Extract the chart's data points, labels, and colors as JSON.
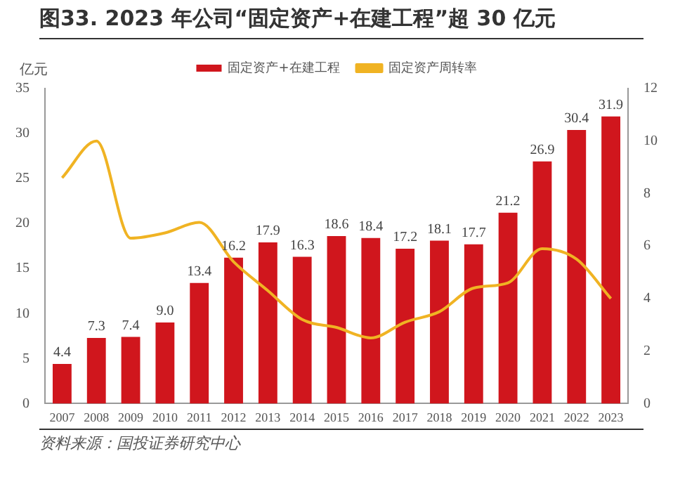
{
  "chart_data": {
    "type": "bar",
    "title": "图33. 2023 年公司“固定资产+在建工程”超 30 亿元",
    "ylabel": "亿元",
    "categories": [
      "2007",
      "2008",
      "2009",
      "2010",
      "2011",
      "2012",
      "2013",
      "2014",
      "2015",
      "2016",
      "2017",
      "2018",
      "2019",
      "2020",
      "2021",
      "2022",
      "2023"
    ],
    "series": [
      {
        "name": "固定资产+在建工程",
        "color": "#d0161d",
        "values": [
          4.4,
          7.3,
          7.4,
          9.0,
          13.4,
          16.2,
          17.9,
          16.3,
          18.6,
          18.4,
          17.2,
          18.1,
          17.7,
          21.2,
          26.9,
          30.4,
          31.9
        ],
        "value_labels": [
          "4.4",
          "7.3",
          "7.4",
          "9.0",
          "13.4",
          "16.2",
          "17.9",
          "16.3",
          "18.6",
          "18.4",
          "17.2",
          "18.1",
          "17.7",
          "21.2",
          "26.9",
          "30.4",
          "31.9"
        ]
      },
      {
        "name": "固定资产周转率",
        "type": "line",
        "axis": "y2",
        "color": "#f0b323",
        "values": [
          8.6,
          10.0,
          6.3,
          6.5,
          6.9,
          5.4,
          4.3,
          3.2,
          2.9,
          2.5,
          3.1,
          3.5,
          4.4,
          4.6,
          5.9,
          5.5,
          4.0
        ]
      }
    ],
    "ylim": [
      0,
      35
    ],
    "yticks": [
      0,
      5,
      10,
      15,
      20,
      25,
      30,
      35
    ],
    "y2lim": [
      0,
      12
    ],
    "y2ticks": [
      0,
      2,
      4,
      6,
      8,
      10,
      12
    ],
    "legend": "top",
    "grid": false,
    "marker": "none",
    "annotations": [
      "资料来源：国投证券研究中心"
    ]
  }
}
